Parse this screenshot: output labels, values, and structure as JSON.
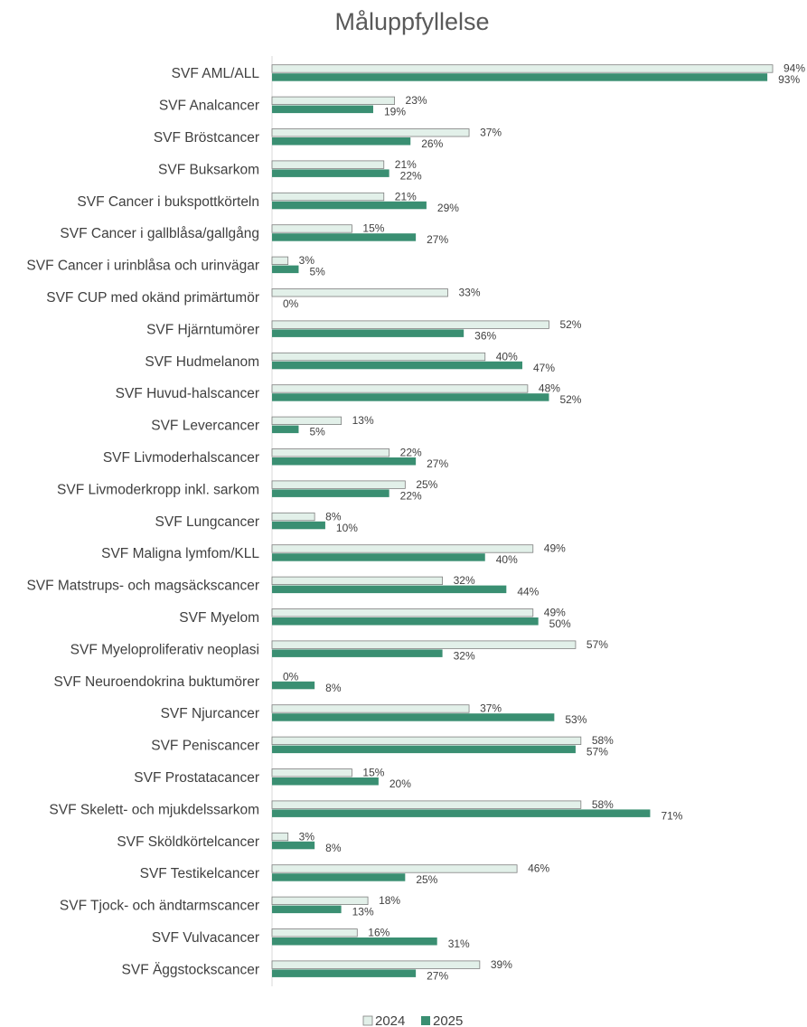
{
  "chart_data": {
    "type": "bar",
    "orientation": "horizontal",
    "title": "Måluppfyllelse",
    "categories": [
      "SVF AML/ALL",
      "SVF Analcancer",
      "SVF Bröstcancer",
      "SVF Buksarkom",
      "SVF Cancer i bukspottkörteln",
      "SVF Cancer i gallblåsa/gallgång",
      "SVF Cancer i urinblåsa och urinvägar",
      "SVF CUP med okänd primärtumör",
      "SVF Hjärntumörer",
      "SVF Hudmelanom",
      "SVF Huvud-halscancer",
      "SVF Levercancer",
      "SVF Livmoderhalscancer",
      "SVF Livmoderkropp inkl. sarkom",
      "SVF Lungcancer",
      "SVF Maligna lymfom/KLL",
      "SVF Matstrups- och magsäckscancer",
      "SVF Myelom",
      "SVF Myeloproliferativ neoplasi",
      "SVF Neuroendokrina buktumörer",
      "SVF Njurcancer",
      "SVF Peniscancer",
      "SVF Prostatacancer",
      "SVF Skelett- och mjukdelssarkom",
      "SVF Sköldkörtelcancer",
      "SVF Testikelcancer",
      "SVF Tjock- och ändtarmscancer",
      "SVF Vulvacancer",
      "SVF Äggstockscancer"
    ],
    "series": [
      {
        "name": "2024",
        "color": "#e2f0e9",
        "stroke": "#7f7f7f",
        "values": [
          94,
          23,
          37,
          21,
          21,
          15,
          3,
          33,
          52,
          40,
          48,
          13,
          22,
          25,
          8,
          49,
          32,
          49,
          57,
          0,
          37,
          58,
          15,
          58,
          3,
          46,
          18,
          16,
          39
        ],
        "labels": [
          "94%",
          "23%",
          "37%",
          "21%",
          "21%",
          "15%",
          "3%",
          "33%",
          "52%",
          "40%",
          "48%",
          "13%",
          "22%",
          "25%",
          "8%",
          "49%",
          "32%",
          "49%",
          "57%",
          "0%",
          "37%",
          "58%",
          "15%",
          "58%",
          "3%",
          "46%",
          "18%",
          "16%",
          "39%"
        ]
      },
      {
        "name": "2025",
        "color": "#3a8f72",
        "stroke": "#3a8f72",
        "values": [
          93,
          19,
          26,
          22,
          29,
          27,
          5,
          0,
          36,
          47,
          52,
          5,
          27,
          22,
          10,
          40,
          44,
          50,
          32,
          8,
          53,
          57,
          20,
          71,
          8,
          25,
          13,
          31,
          27
        ],
        "labels": [
          "93%",
          "19%",
          "26%",
          "22%",
          "29%",
          "27%",
          "5%",
          "0%",
          "36%",
          "47%",
          "52%",
          "5%",
          "27%",
          "22%",
          "10%",
          "40%",
          "44%",
          "50%",
          "32%",
          "8%",
          "53%",
          "57%",
          "20%",
          "71%",
          "8%",
          "25%",
          "13%",
          "31%",
          "27%"
        ]
      }
    ],
    "xlim": [
      0,
      100
    ],
    "grid": false,
    "legend_position": "bottom"
  }
}
